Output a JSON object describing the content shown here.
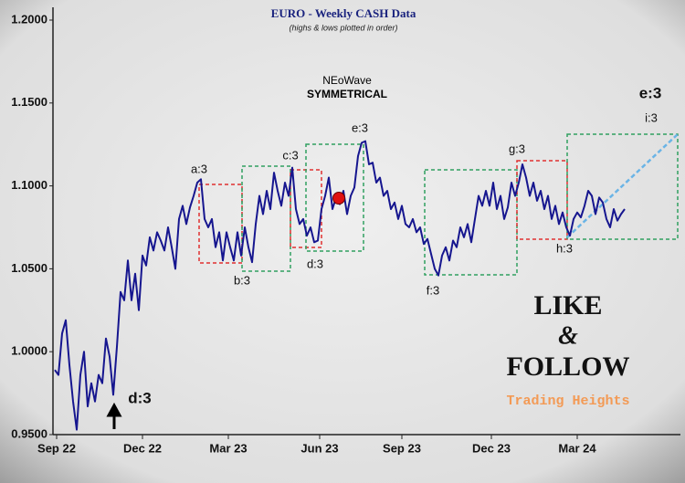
{
  "chart_data": {
    "type": "line",
    "title": "EURO - Weekly CASH Data",
    "subtitle": "(highs & lows plotted in order)",
    "pattern_name": "NEoWave",
    "pattern_type": "SYMMETRICAL",
    "annotations": [
      "a:3",
      "b:3",
      "c:3",
      "d:3",
      "e:3",
      "f:3",
      "g:3",
      "h:3",
      "e:3",
      "i:3",
      "d:3"
    ],
    "promo": {
      "line1": "LIKE",
      "line2": "&",
      "line3": "FOLLOW",
      "brand": "Trading Heights"
    },
    "series": [
      {
        "color": "#16168f",
        "values": [
          0.989,
          0.986,
          1.011,
          1.019,
          0.992,
          0.97,
          0.953,
          0.986,
          1.0,
          0.967,
          0.981,
          0.97,
          0.986,
          0.981,
          1.008,
          0.997,
          0.974,
          1.003,
          1.036,
          1.031,
          1.055,
          1.031,
          1.047,
          1.025,
          1.058,
          1.052,
          1.069,
          1.061,
          1.072,
          1.067,
          1.061,
          1.075,
          1.063,
          1.05,
          1.08,
          1.088,
          1.077,
          1.087,
          1.094,
          1.102,
          1.104,
          1.08,
          1.075,
          1.08,
          1.063,
          1.072,
          1.055,
          1.072,
          1.063,
          1.055,
          1.072,
          1.058,
          1.075,
          1.063,
          1.054,
          1.077,
          1.094,
          1.083,
          1.097,
          1.086,
          1.108,
          1.097,
          1.088,
          1.102,
          1.094,
          1.111,
          1.086,
          1.077,
          1.08,
          1.07,
          1.075,
          1.066,
          1.067,
          1.086,
          1.094,
          1.105,
          1.086,
          1.093,
          1.089,
          1.097,
          1.083,
          1.094,
          1.099,
          1.118,
          1.126,
          1.127,
          1.113,
          1.114,
          1.102,
          1.105,
          1.094,
          1.097,
          1.086,
          1.09,
          1.08,
          1.088,
          1.077,
          1.075,
          1.08,
          1.072,
          1.075,
          1.065,
          1.068,
          1.059,
          1.05,
          1.046,
          1.058,
          1.063,
          1.055,
          1.067,
          1.063,
          1.075,
          1.069,
          1.077,
          1.066,
          1.08,
          1.094,
          1.088,
          1.097,
          1.088,
          1.102,
          1.086,
          1.094,
          1.08,
          1.087,
          1.102,
          1.094,
          1.102,
          1.113,
          1.105,
          1.094,
          1.102,
          1.091,
          1.097,
          1.086,
          1.094,
          1.08,
          1.088,
          1.077,
          1.084,
          1.075,
          1.07,
          1.08,
          1.084,
          1.081,
          1.088,
          1.097,
          1.094,
          1.083,
          1.093,
          1.09,
          1.08,
          1.075,
          1.086,
          1.079,
          1.083,
          1.086
        ]
      }
    ],
    "xlim": [
      -0.5,
      171.25
    ],
    "xticks": [
      {
        "value": 0.5,
        "label": "Sep 22"
      },
      {
        "value": 24,
        "label": "Dec 22"
      },
      {
        "value": 47.5,
        "label": "Mar 23"
      },
      {
        "value": 72.5,
        "label": "Jun 23"
      },
      {
        "value": 95,
        "label": "Sep 23"
      },
      {
        "value": 119.5,
        "label": "Dec 23"
      },
      {
        "value": 143,
        "label": "Mar 24"
      }
    ],
    "ylim": [
      0.95,
      1.2
    ],
    "yticks": [
      {
        "value": 0.95,
        "label": "0.9500"
      },
      {
        "value": 1.0,
        "label": "1.0000"
      },
      {
        "value": 1.05,
        "label": "1.0500"
      },
      {
        "value": 1.1,
        "label": "1.1000"
      },
      {
        "value": 1.15,
        "label": "1.1500"
      },
      {
        "value": 1.2,
        "label": "1.2000"
      }
    ]
  }
}
